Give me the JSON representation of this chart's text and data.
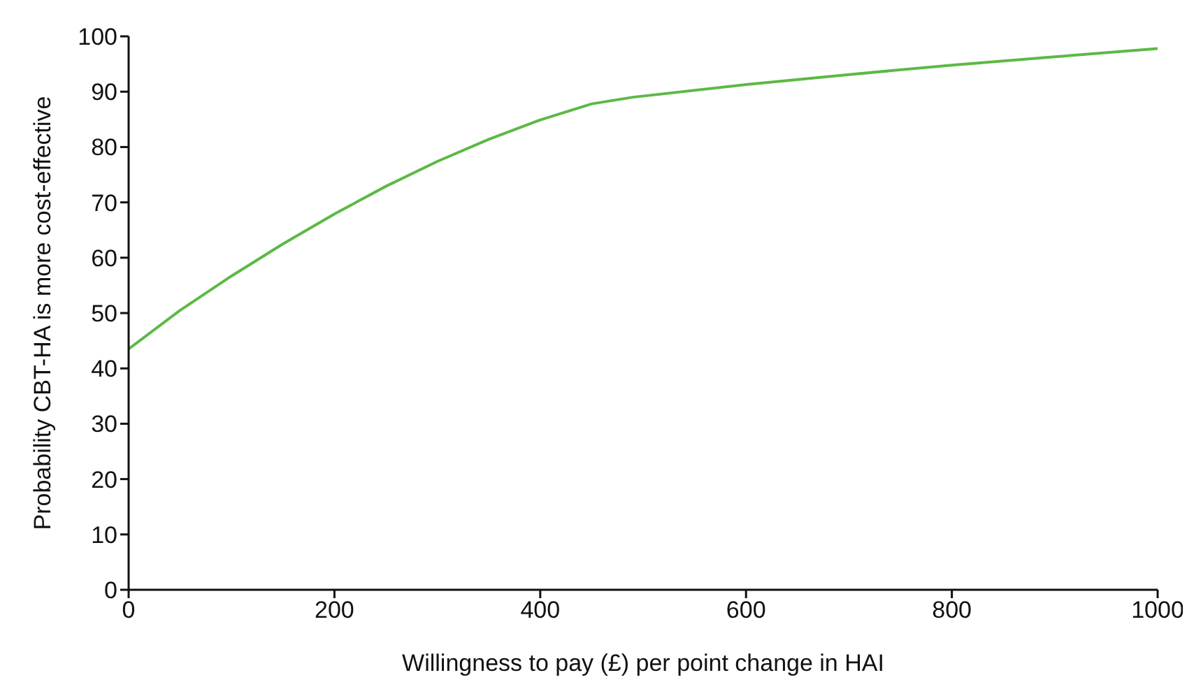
{
  "chart_data": {
    "type": "line",
    "xlabel": "Willingness to pay (£) per point change in HAI",
    "ylabel": "Probability CBT-HA is more cost-effective",
    "x": [
      0,
      50,
      100,
      150,
      200,
      250,
      300,
      350,
      400,
      450,
      490,
      600,
      700,
      800,
      900,
      1000
    ],
    "series": [
      {
        "color": "#5cb946",
        "values": [
          43.5,
          50.5,
          56.7,
          62.5,
          67.9,
          72.9,
          77.4,
          81.4,
          84.9,
          87.8,
          89,
          91.3,
          93.1,
          94.8,
          96.3,
          97.8
        ]
      }
    ],
    "xlim": [
      0,
      1000
    ],
    "xticks": [
      0,
      200,
      400,
      600,
      800,
      1000
    ],
    "ylim": [
      0,
      100
    ],
    "yticks": [
      0,
      10,
      20,
      30,
      40,
      50,
      60,
      70,
      80,
      90,
      100
    ],
    "grid": false,
    "legend": false,
    "marker": "none",
    "line_style": "solid"
  }
}
